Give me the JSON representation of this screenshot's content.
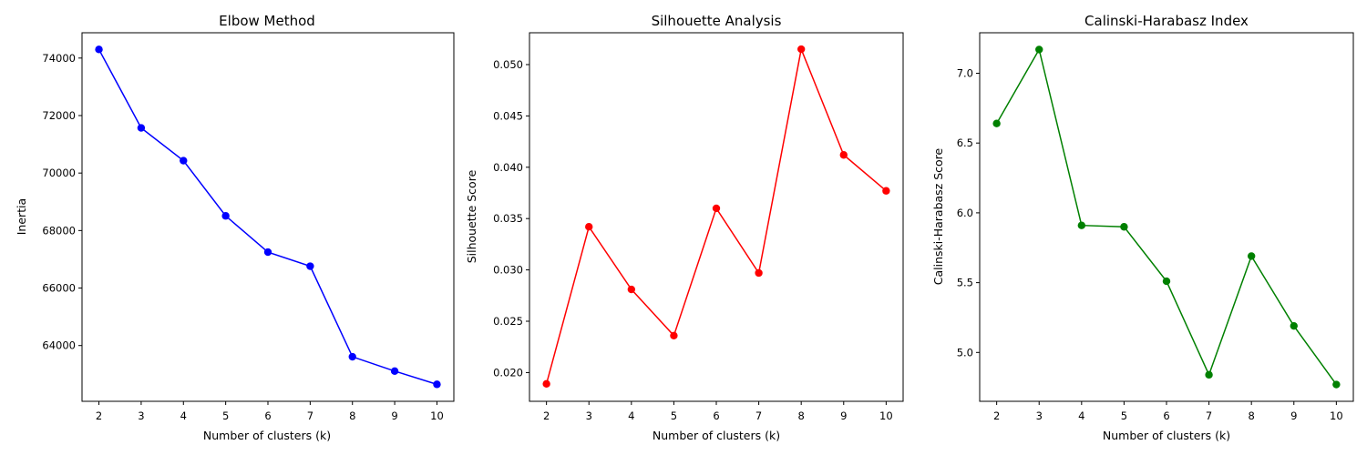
{
  "chart_data": [
    {
      "type": "line",
      "title": "Elbow Method",
      "xlabel": "Number of clusters (k)",
      "ylabel": "Inertia",
      "x": [
        2,
        3,
        4,
        5,
        6,
        7,
        8,
        9,
        10
      ],
      "xticks": [
        "2",
        "3",
        "4",
        "5",
        "6",
        "7",
        "8",
        "9",
        "10"
      ],
      "yticks": [
        "64000",
        "66000",
        "68000",
        "70000",
        "72000",
        "74000"
      ],
      "ytick_values": [
        64000,
        66000,
        68000,
        70000,
        72000,
        74000
      ],
      "xlim": [
        1.6,
        10.4
      ],
      "ylim": [
        62060,
        74880
      ],
      "series": [
        {
          "values": [
            74300,
            71570,
            70430,
            68510,
            67250,
            66760,
            63610,
            63110,
            62650
          ],
          "color": "#0000ff"
        }
      ],
      "grid": false,
      "markers": true
    },
    {
      "type": "line",
      "title": "Silhouette Analysis",
      "xlabel": "Number of clusters (k)",
      "ylabel": "Silhouette Score",
      "x": [
        2,
        3,
        4,
        5,
        6,
        7,
        8,
        9,
        10
      ],
      "xticks": [
        "2",
        "3",
        "4",
        "5",
        "6",
        "7",
        "8",
        "9",
        "10"
      ],
      "yticks": [
        "0.020",
        "0.025",
        "0.030",
        "0.035",
        "0.040",
        "0.045",
        "0.050"
      ],
      "ytick_values": [
        0.02,
        0.025,
        0.03,
        0.035,
        0.04,
        0.045,
        0.05
      ],
      "xlim": [
        1.6,
        10.4
      ],
      "ylim": [
        0.0172,
        0.0531
      ],
      "series": [
        {
          "values": [
            0.0189,
            0.0342,
            0.0281,
            0.0236,
            0.036,
            0.0297,
            0.0515,
            0.0412,
            0.0377
          ],
          "color": "#ff0000"
        }
      ],
      "grid": false,
      "markers": true
    },
    {
      "type": "line",
      "title": "Calinski-Harabasz Index",
      "xlabel": "Number of clusters (k)",
      "ylabel": "Calinski-Harabasz Score",
      "x": [
        2,
        3,
        4,
        5,
        6,
        7,
        8,
        9,
        10
      ],
      "xticks": [
        "2",
        "3",
        "4",
        "5",
        "6",
        "7",
        "8",
        "9",
        "10"
      ],
      "yticks": [
        "5.0",
        "5.5",
        "6.0",
        "6.5",
        "7.0"
      ],
      "ytick_values": [
        5.0,
        5.5,
        6.0,
        6.5,
        7.0
      ],
      "xlim": [
        1.6,
        10.4
      ],
      "ylim": [
        4.65,
        7.29
      ],
      "series": [
        {
          "values": [
            6.64,
            7.17,
            5.91,
            5.9,
            5.51,
            4.84,
            5.69,
            5.19,
            4.77
          ],
          "color": "#008000"
        }
      ],
      "grid": false,
      "markers": true
    }
  ]
}
